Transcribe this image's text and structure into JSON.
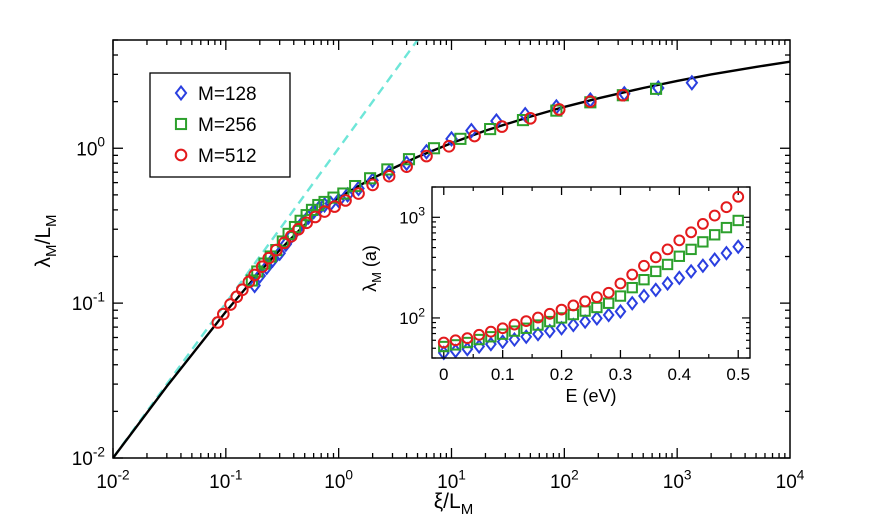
{
  "chart_data": [
    {
      "type": "scatter",
      "scale": "log-log",
      "xlabel": "ξ/L",
      "xlabel_sub": "M",
      "ylabel": "λ",
      "ylabel_sub1": "M",
      "ylabel_mid": "/L",
      "ylabel_sub2": "M",
      "xlim": [
        0.01,
        10000
      ],
      "ylim": [
        0.01,
        5
      ],
      "x_ticks": [
        {
          "value": 0.01,
          "base": "10",
          "exp": "-2"
        },
        {
          "value": 0.1,
          "base": "10",
          "exp": "-1"
        },
        {
          "value": 1,
          "base": "10",
          "exp": "0"
        },
        {
          "value": 10,
          "base": "10",
          "exp": "1"
        },
        {
          "value": 100,
          "base": "10",
          "exp": "2"
        },
        {
          "value": 1000,
          "base": "10",
          "exp": "3"
        },
        {
          "value": 10000,
          "base": "10",
          "exp": "4"
        }
      ],
      "y_ticks": [
        {
          "value": 0.01,
          "base": "10",
          "exp": "-2"
        },
        {
          "value": 0.1,
          "base": "10",
          "exp": "-1"
        },
        {
          "value": 1,
          "base": "10",
          "exp": "0"
        }
      ],
      "legend_position": "top-left",
      "series": [
        {
          "name": "M=128",
          "marker": "diamond",
          "color": "#2a3fe0",
          "x": [
            0.18,
            0.2,
            0.23,
            0.26,
            0.3,
            0.34,
            0.38,
            0.43,
            0.48,
            0.54,
            0.6,
            0.67,
            0.75,
            0.85,
            1.0,
            1.2,
            1.5,
            2.0,
            2.8,
            4.0,
            6.0,
            10,
            15,
            25,
            45,
            85,
            170,
            340,
            680,
            1350
          ],
          "y": [
            0.13,
            0.15,
            0.17,
            0.19,
            0.21,
            0.24,
            0.27,
            0.3,
            0.33,
            0.36,
            0.39,
            0.41,
            0.43,
            0.44,
            0.46,
            0.5,
            0.55,
            0.62,
            0.7,
            0.8,
            0.95,
            1.15,
            1.3,
            1.5,
            1.65,
            1.85,
            2.05,
            2.25,
            2.45,
            2.65
          ]
        },
        {
          "name": "M=256",
          "marker": "square",
          "color": "#2ca02c",
          "x": [
            0.17,
            0.19,
            0.22,
            0.25,
            0.28,
            0.32,
            0.36,
            0.41,
            0.46,
            0.52,
            0.58,
            0.66,
            0.75,
            0.9,
            1.1,
            1.4,
            1.9,
            2.7,
            4.2,
            7.0,
            12,
            22,
            43,
            85,
            170,
            330,
            650
          ],
          "y": [
            0.14,
            0.16,
            0.18,
            0.2,
            0.22,
            0.25,
            0.28,
            0.31,
            0.34,
            0.37,
            0.4,
            0.43,
            0.45,
            0.48,
            0.51,
            0.57,
            0.64,
            0.73,
            0.85,
            1.0,
            1.15,
            1.33,
            1.52,
            1.75,
            1.98,
            2.2,
            2.42
          ]
        },
        {
          "name": "M=512",
          "marker": "circle",
          "color": "#e31a1c",
          "x": [
            0.085,
            0.095,
            0.11,
            0.125,
            0.14,
            0.16,
            0.18,
            0.21,
            0.24,
            0.28,
            0.33,
            0.38,
            0.44,
            0.52,
            0.62,
            0.75,
            0.92,
            1.15,
            1.5,
            2.0,
            2.8,
            4.0,
            6.0,
            9.5,
            16,
            28,
            50,
            90,
            170,
            330
          ],
          "y": [
            0.075,
            0.085,
            0.098,
            0.11,
            0.122,
            0.137,
            0.152,
            0.172,
            0.195,
            0.22,
            0.245,
            0.27,
            0.3,
            0.33,
            0.36,
            0.39,
            0.42,
            0.46,
            0.51,
            0.58,
            0.66,
            0.76,
            0.89,
            1.03,
            1.2,
            1.38,
            1.56,
            1.78,
            2.0,
            2.2
          ]
        }
      ],
      "fit_line": {
        "style": "solid",
        "color": "#000000",
        "x": [
          0.01,
          0.03,
          0.1,
          0.2,
          0.3,
          0.5,
          0.7,
          1,
          1.5,
          2,
          3,
          5,
          10,
          20,
          50,
          100,
          200,
          500,
          1000,
          2000,
          5000,
          10000
        ],
        "y": [
          0.01,
          0.029,
          0.088,
          0.16,
          0.22,
          0.32,
          0.4,
          0.48,
          0.57,
          0.64,
          0.74,
          0.88,
          1.08,
          1.3,
          1.6,
          1.85,
          2.1,
          2.45,
          2.72,
          3.0,
          3.35,
          3.62
        ]
      },
      "asymptote_line": {
        "style": "dashed",
        "color": "#6ee6d8",
        "x": [
          0.01,
          5.0
        ],
        "y": [
          0.01,
          5.0
        ]
      }
    },
    {
      "type": "scatter",
      "scale": "semi-log-y",
      "inset": true,
      "xlabel": "E (eV)",
      "ylabel": "λ",
      "ylabel_sub": "M",
      "ylabel_unit": " (a)",
      "xlim": [
        -0.02,
        0.52
      ],
      "ylim": [
        40,
        2000
      ],
      "x_ticks": [
        {
          "value": 0,
          "label": "0"
        },
        {
          "value": 0.1,
          "label": "0.1"
        },
        {
          "value": 0.2,
          "label": "0.2"
        },
        {
          "value": 0.3,
          "label": "0.3"
        },
        {
          "value": 0.4,
          "label": "0.4"
        },
        {
          "value": 0.5,
          "label": "0.5"
        }
      ],
      "y_ticks": [
        {
          "value": 100,
          "base": "10",
          "exp": "2"
        },
        {
          "value": 1000,
          "base": "10",
          "exp": "3"
        }
      ],
      "series": [
        {
          "name": "M=128",
          "marker": "diamond",
          "color": "#2a3fe0",
          "x": [
            0,
            0.02,
            0.04,
            0.06,
            0.08,
            0.1,
            0.12,
            0.14,
            0.16,
            0.18,
            0.2,
            0.22,
            0.24,
            0.26,
            0.28,
            0.3,
            0.32,
            0.34,
            0.36,
            0.38,
            0.4,
            0.42,
            0.44,
            0.46,
            0.48,
            0.5
          ],
          "y": [
            45,
            47,
            49,
            52,
            55,
            58,
            61,
            65,
            69,
            74,
            79,
            85,
            92,
            99,
            107,
            116,
            140,
            165,
            190,
            220,
            250,
            290,
            330,
            380,
            440,
            510
          ]
        },
        {
          "name": "M=256",
          "marker": "square",
          "color": "#2ca02c",
          "x": [
            0,
            0.02,
            0.04,
            0.06,
            0.08,
            0.1,
            0.12,
            0.14,
            0.16,
            0.18,
            0.2,
            0.22,
            0.24,
            0.26,
            0.28,
            0.3,
            0.32,
            0.34,
            0.36,
            0.38,
            0.4,
            0.42,
            0.44,
            0.46,
            0.48,
            0.5
          ],
          "y": [
            52,
            54,
            57,
            61,
            65,
            69,
            74,
            79,
            85,
            92,
            100,
            108,
            117,
            127,
            140,
            165,
            200,
            240,
            290,
            340,
            410,
            480,
            570,
            670,
            790,
            930
          ]
        },
        {
          "name": "M=512",
          "marker": "circle",
          "color": "#e31a1c",
          "x": [
            0,
            0.02,
            0.04,
            0.06,
            0.08,
            0.1,
            0.12,
            0.14,
            0.16,
            0.18,
            0.2,
            0.22,
            0.24,
            0.26,
            0.28,
            0.3,
            0.32,
            0.34,
            0.36,
            0.38,
            0.4,
            0.42,
            0.44,
            0.46,
            0.48,
            0.5
          ],
          "y": [
            57,
            60,
            63,
            68,
            73,
            79,
            86,
            93,
            101,
            110,
            121,
            133,
            146,
            161,
            178,
            220,
            270,
            330,
            400,
            480,
            590,
            710,
            860,
            1040,
            1260,
            1600
          ]
        }
      ]
    }
  ]
}
